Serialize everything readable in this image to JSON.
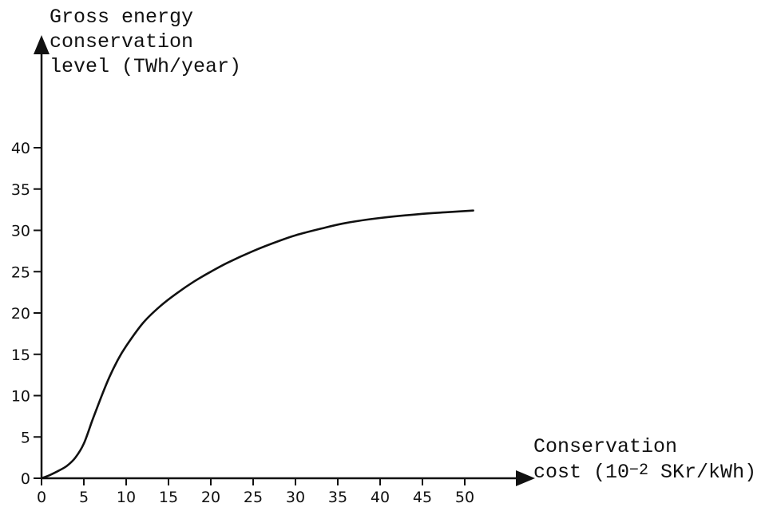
{
  "chart_data": {
    "type": "line",
    "title": "",
    "ylabel_lines": [
      "Gross energy",
      "conservation",
      "level (TWh/year)"
    ],
    "xlabel_line1": "Conservation",
    "xlabel_line2_prefix": "cost (10",
    "xlabel_exponent": "−2",
    "xlabel_line2_suffix": " SKr/kWh)",
    "xlim": [
      0,
      50
    ],
    "ylim": [
      0,
      40
    ],
    "x_ticks": [
      0,
      5,
      10,
      15,
      20,
      25,
      30,
      35,
      40,
      45,
      50
    ],
    "y_ticks": [
      0,
      5,
      10,
      15,
      20,
      25,
      30,
      35,
      40
    ],
    "grid": false,
    "series": [
      {
        "x": [
          0,
          1,
          2,
          3,
          4,
          5,
          6,
          7,
          8,
          9,
          10,
          12,
          14,
          16,
          18,
          20,
          22,
          25,
          28,
          30,
          33,
          36,
          40,
          45,
          48,
          51
        ],
        "y": [
          0,
          0.4,
          0.9,
          1.5,
          2.5,
          4.2,
          7.0,
          9.7,
          12.2,
          14.3,
          16.0,
          18.8,
          20.8,
          22.4,
          23.8,
          25.0,
          26.1,
          27.5,
          28.7,
          29.4,
          30.2,
          30.9,
          31.5,
          32.0,
          32.2,
          32.4
        ]
      }
    ]
  }
}
